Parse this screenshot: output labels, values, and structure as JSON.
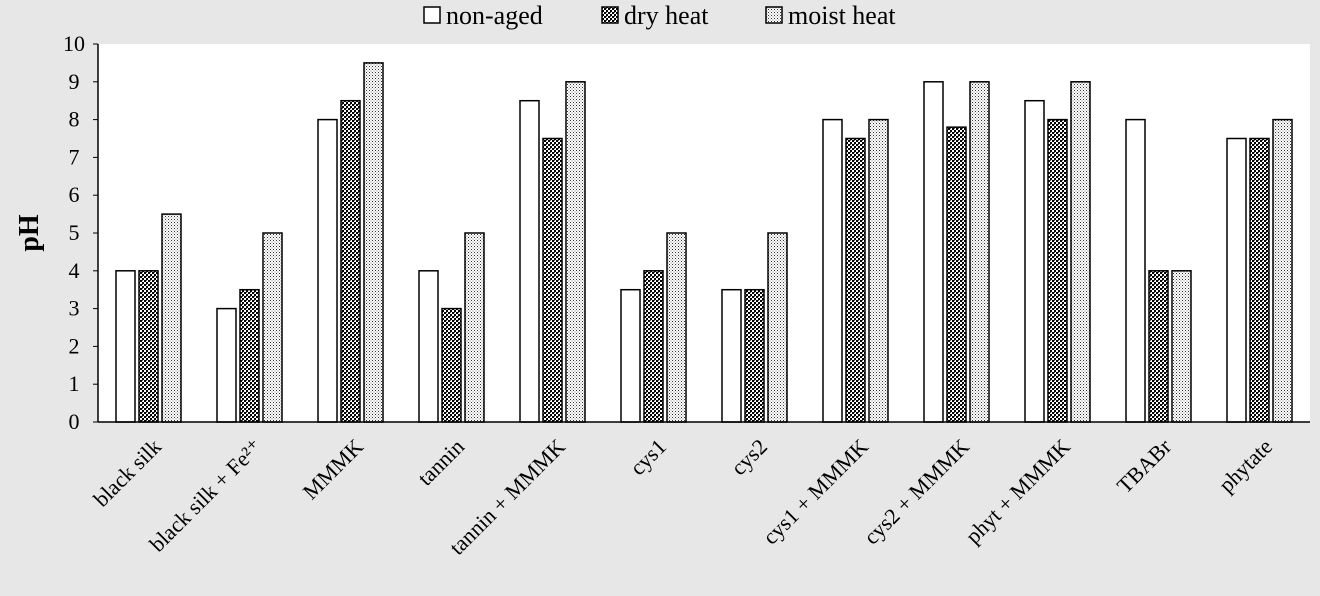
{
  "chart_data": {
    "type": "bar",
    "title": "",
    "xlabel": "",
    "ylabel": "pH",
    "ylim": [
      0,
      10
    ],
    "yticks": [
      0,
      1,
      2,
      3,
      4,
      5,
      6,
      7,
      8,
      9,
      10
    ],
    "grid": false,
    "legend_position": "top",
    "categories": [
      "black silk",
      "black silk + Fe²⁺",
      "MMMK",
      "tannin",
      "tannin + MMMK",
      "cys1",
      "cys2",
      "cys1 + MMMK",
      "cys2 + MMMK",
      "phyt + MMMK",
      "TBABr",
      "phytate"
    ],
    "series": [
      {
        "name": "non-aged",
        "pattern": "none",
        "values": [
          4,
          3,
          8,
          4,
          8.5,
          3.5,
          3.5,
          8,
          9,
          8.5,
          8,
          7.5
        ]
      },
      {
        "name": "dry heat",
        "pattern": "crosshatch",
        "values": [
          4,
          3.5,
          8.5,
          3,
          7.5,
          4,
          3.5,
          7.5,
          7.8,
          8,
          4,
          7.5
        ]
      },
      {
        "name": "moist heat",
        "pattern": "dots",
        "values": [
          5.5,
          5,
          9.5,
          5,
          9,
          5,
          5,
          8,
          9,
          9,
          4,
          8
        ]
      }
    ],
    "colors": {
      "background": "#e7e7e7",
      "plot_area": "#ffffff",
      "bar_fill": "#ffffff",
      "bar_stroke": "#000000"
    }
  }
}
